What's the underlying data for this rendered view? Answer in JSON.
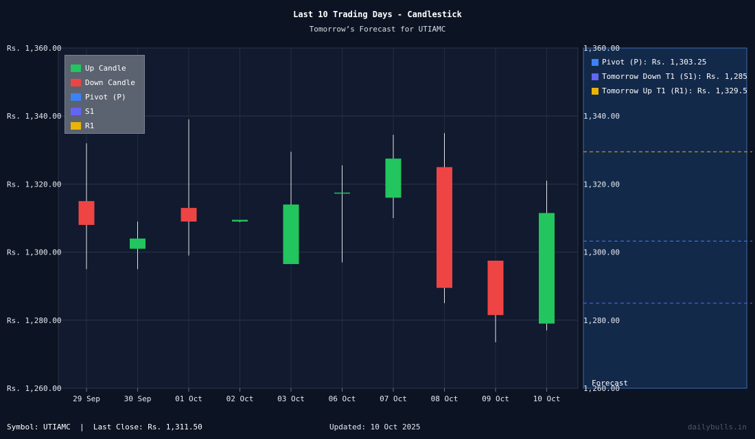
{
  "title": "Last 10 Trading Days - Candlestick",
  "subtitle": "Tomorrow’s Forecast for UTIAMC",
  "legend": [
    {
      "label": "Up Candle",
      "color": "#22c55e"
    },
    {
      "label": "Down Candle",
      "color": "#ef4444"
    },
    {
      "label": "Pivot (P)",
      "color": "#3b82f6"
    },
    {
      "label": "S1",
      "color": "#6366f1"
    },
    {
      "label": "R1",
      "color": "#eab308"
    }
  ],
  "forecast_panel": {
    "label": "Forecast",
    "items": [
      {
        "label": "Pivot (P): Rs. 1,303.25",
        "color": "#3b82f6"
      },
      {
        "label": "Tomorrow Down T1 (S1): Rs. 1,285",
        "color": "#6366f1"
      },
      {
        "label": "Tomorrow Up T1 (R1): Rs. 1,329.5",
        "color": "#eab308"
      }
    ]
  },
  "footer": {
    "symbol": "Symbol: UTIAMC  |  Last Close: Rs. 1,311.50",
    "updated": "Updated: 10 Oct 2025",
    "brand": "dailybulls.in"
  },
  "chart_data": {
    "type": "candlestick",
    "title": "Last 10 Trading Days - Candlestick",
    "subtitle": "Tomorrow’s Forecast for UTIAMC",
    "ylim": [
      1260,
      1360
    ],
    "yticks": [
      1260,
      1280,
      1300,
      1320,
      1340,
      1360
    ],
    "ytick_labels": [
      "Rs. 1,260.00",
      "Rs. 1,280.00",
      "Rs. 1,300.00",
      "Rs. 1,320.00",
      "Rs. 1,340.00",
      "Rs. 1,360.00"
    ],
    "right_ytick_labels": [
      "1,260.00",
      "1,280.00",
      "1,300.00",
      "1,320.00",
      "1,340.00",
      "1,360.00"
    ],
    "categories": [
      "29 Sep",
      "30 Sep",
      "01 Oct",
      "02 Oct",
      "03 Oct",
      "06 Oct",
      "07 Oct",
      "08 Oct",
      "09 Oct",
      "10 Oct"
    ],
    "candles": [
      {
        "open": 1315.0,
        "high": 1332.0,
        "low": 1295.0,
        "close": 1308.0
      },
      {
        "open": 1301.0,
        "high": 1309.0,
        "low": 1295.0,
        "close": 1304.0
      },
      {
        "open": 1313.0,
        "high": 1339.0,
        "low": 1299.0,
        "close": 1309.0
      },
      {
        "open": 1309.0,
        "high": 1309.3,
        "low": 1308.8,
        "close": 1309.5
      },
      {
        "open": 1296.5,
        "high": 1329.5,
        "low": 1296.5,
        "close": 1314.0
      },
      {
        "open": 1317.5,
        "high": 1325.5,
        "low": 1297.0,
        "close": 1317.5
      },
      {
        "open": 1316.0,
        "high": 1334.5,
        "low": 1310.0,
        "close": 1327.5
      },
      {
        "open": 1325.0,
        "high": 1335.0,
        "low": 1285.0,
        "close": 1289.5
      },
      {
        "open": 1297.5,
        "high": 1297.5,
        "low": 1273.5,
        "close": 1281.5
      },
      {
        "open": 1279.0,
        "high": 1321.0,
        "low": 1277.0,
        "close": 1311.5
      }
    ],
    "levels": [
      {
        "name": "Pivot (P)",
        "value": 1303.25,
        "color": "#3b82f6"
      },
      {
        "name": "S1",
        "value": 1285,
        "color": "#6366f1"
      },
      {
        "name": "R1",
        "value": 1329.5,
        "color": "#eab308"
      }
    ],
    "colors": {
      "up": "#22c55e",
      "down": "#ef4444"
    },
    "grid": true
  }
}
